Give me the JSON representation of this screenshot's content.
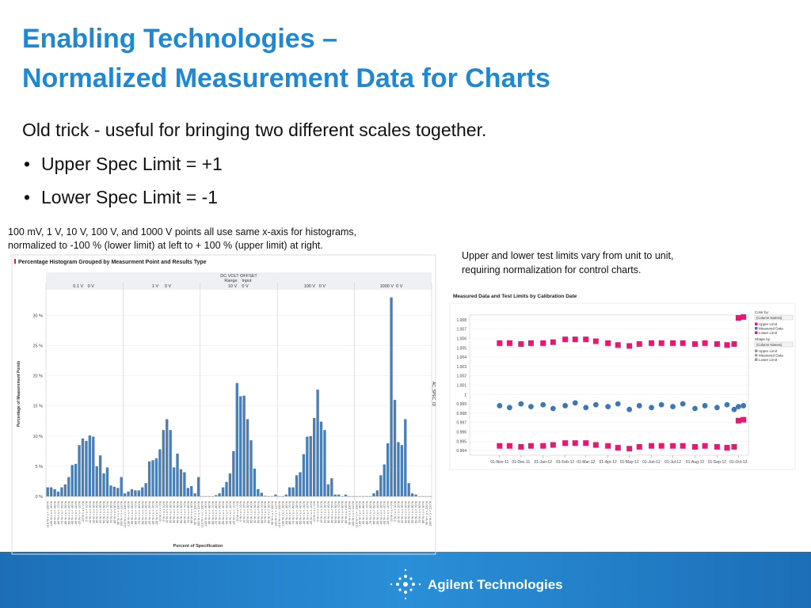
{
  "title": [
    "Enabling Technologies –",
    "Normalized Measurement Data for Charts"
  ],
  "intro": "Old trick  - useful for bringing two different scales together.",
  "bullets": [
    "Upper Spec Limit = +1",
    "Lower Spec Limit = -1"
  ],
  "caption_left": [
    "100 mV, 1 V, 10 V, 100 V, and 1000 V points all use same x-axis for histograms,",
    "normalized to -100 % (lower limit) at left to + 100 % (upper limit) at right."
  ],
  "caption_right": [
    "Upper and lower test limits vary from unit to unit,",
    "requiring normalization for control charts."
  ],
  "footer": "Agilent Technologies",
  "chart_data": [
    {
      "type": "bar",
      "title": "Percentage Histogram Grouped by Measurment Point and Results Type",
      "group_header": "DC VOLT OFFSET",
      "group_fields": [
        "Range",
        "Input"
      ],
      "ylabel": "Percentage of Measurement Points",
      "side_label": "AC_SPEC_ID",
      "xlabel": "Percent of Specification",
      "color": "#4a7fb5",
      "ylim": [
        0,
        34
      ],
      "yticks": [
        {
          "value": 0,
          "label": "0 %"
        },
        {
          "value": 5,
          "label": "5 %"
        },
        {
          "value": 10,
          "label": "10 %"
        },
        {
          "value": 15,
          "label": "15 %"
        },
        {
          "value": 20,
          "label": "20 %"
        },
        {
          "value": 25,
          "label": "25 %"
        },
        {
          "value": 30,
          "label": "30 %"
        }
      ],
      "grid": true,
      "categories": [
        "-110 % < x < -100 %",
        "-100 % < x < -90 %",
        "-90 % < x < -80 %",
        "-80 % < x < -70 %",
        "-70 % < x < -60 %",
        "-60 % < x < -50 %",
        "-50 % < x < -40 %",
        "-40 % < x < -30 %",
        "-30 % < x < -20 %",
        "-20 % < x < -10 %",
        "-10 % < x < 0 %",
        "0 % < x < 10 %",
        "10 % < x < 20 %",
        "20 % < x < 30 %",
        "30 % < x < 40 %",
        "40 % < x < 50 %",
        "50 % < x < 60 %",
        "60 % < x < 70 %",
        "70 % < x < 80 %",
        "80 % < x < 90 %",
        "90 % < x < 100 %",
        "100 % < x < 110 %"
      ],
      "series": [
        {
          "name": "0.1 V",
          "input": "0 V",
          "values": [
            1.5,
            1.5,
            1.2,
            0.8,
            1.5,
            2,
            3.2,
            5.2,
            5.4,
            8.5,
            9.6,
            9.2,
            10.1,
            9.9,
            5,
            6.8,
            3.8,
            4.8,
            1.8,
            1.6,
            1.4,
            3.2
          ]
        },
        {
          "name": "1 V",
          "input": "0 V",
          "values": [
            0.5,
            0.8,
            1.2,
            1,
            1,
            1.5,
            2.2,
            5.8,
            6,
            6.3,
            7.8,
            11,
            12.8,
            11,
            4.8,
            7.1,
            4.5,
            4,
            1.4,
            1.7,
            0.5,
            3.2
          ]
        },
        {
          "name": "10 V",
          "input": "0 V",
          "values": [
            0,
            0,
            0,
            0,
            0.2,
            0.5,
            1.5,
            2.4,
            3.8,
            7.5,
            18.8,
            16.6,
            16.7,
            12.8,
            9.3,
            4.6,
            1.2,
            0.6,
            0.1,
            0,
            0,
            0.3
          ]
        },
        {
          "name": "100 V",
          "input": "0 V",
          "values": [
            0,
            0,
            0.3,
            1.5,
            1.5,
            3.5,
            4,
            7,
            9.9,
            10,
            13,
            17.7,
            12.4,
            11,
            2,
            3,
            0.3,
            0.3,
            0,
            0.3,
            0,
            0
          ]
        },
        {
          "name": "1000 V",
          "input": "0 V",
          "values": [
            0,
            0,
            0,
            0,
            0,
            0.5,
            1,
            3.5,
            5.3,
            8.8,
            33,
            16,
            9,
            8.5,
            12.8,
            2.2,
            0.5,
            0.3,
            0,
            0,
            0,
            0
          ]
        }
      ]
    },
    {
      "type": "scatter",
      "title": "Measured Data and Test Limits by Calibration Date",
      "legend_labels": {
        "color_by": "Color by:",
        "shape_by": "Shape by:",
        "column": "(Column Names)"
      },
      "xlim": [
        "2011-09-20",
        "2012-10-15"
      ],
      "xticks": [
        {
          "value": "2011-11-01",
          "label": "01-Nov-11"
        },
        {
          "value": "2011-12-01",
          "label": "01-Dec-11"
        },
        {
          "value": "2012-01-01",
          "label": "01-Jan-12"
        },
        {
          "value": "2012-02-01",
          "label": "01-Feb-12"
        },
        {
          "value": "2012-03-01",
          "label": "01-Mar-12"
        },
        {
          "value": "2012-04-01",
          "label": "01-Apr-12"
        },
        {
          "value": "2012-05-01",
          "label": "01-May-12"
        },
        {
          "value": "2012-06-01",
          "label": "01-Jun-12"
        },
        {
          "value": "2012-07-01",
          "label": "01-Jul-12"
        },
        {
          "value": "2012-08-01",
          "label": "01-Aug-12"
        },
        {
          "value": "2012-09-01",
          "label": "01-Sep-12"
        },
        {
          "value": "2012-10-01",
          "label": "01-Oct-12"
        }
      ],
      "ylim": [
        0.9935,
        1.0085
      ],
      "yticks": [
        0.994,
        0.995,
        0.996,
        0.997,
        0.998,
        0.999,
        1,
        1.001,
        1.002,
        1.003,
        1.004,
        1.005,
        1.006,
        1.007,
        1.008
      ],
      "grid": true,
      "x": [
        "2011-11-01",
        "2011-11-15",
        "2011-12-01",
        "2011-12-15",
        "2012-01-01",
        "2012-01-15",
        "2012-02-01",
        "2012-02-15",
        "2012-03-01",
        "2012-03-15",
        "2012-04-01",
        "2012-04-15",
        "2012-05-01",
        "2012-05-15",
        "2012-06-01",
        "2012-06-15",
        "2012-07-01",
        "2012-07-15",
        "2012-08-01",
        "2012-08-15",
        "2012-09-01",
        "2012-09-15",
        "2012-09-25",
        "2012-10-01",
        "2012-10-08"
      ],
      "series": [
        {
          "name": "Upper Limit",
          "color": "#e8176f",
          "marker": "square",
          "values": [
            1.0055,
            1.0055,
            1.0054,
            1.0055,
            1.0055,
            1.0056,
            1.0059,
            1.0059,
            1.0059,
            1.0057,
            1.0055,
            1.0053,
            1.0052,
            1.0054,
            1.0055,
            1.0055,
            1.0055,
            1.0055,
            1.0054,
            1.0055,
            1.0054,
            1.0053,
            1.0054,
            1.0082,
            1.0083
          ]
        },
        {
          "name": "Measured Data",
          "color": "#3d78b6",
          "marker": "circle",
          "values": [
            0.9988,
            0.9986,
            0.999,
            0.9987,
            0.9989,
            0.9985,
            0.9988,
            0.9991,
            0.9986,
            0.9989,
            0.9987,
            0.999,
            0.9984,
            0.9988,
            0.9986,
            0.9989,
            0.9987,
            0.999,
            0.9985,
            0.9988,
            0.9986,
            0.9989,
            0.9984,
            0.9987,
            0.9988
          ]
        },
        {
          "name": "Lower Limit",
          "color": "#e8176f",
          "marker": "square",
          "values": [
            0.9945,
            0.9945,
            0.9944,
            0.9945,
            0.9945,
            0.9946,
            0.9948,
            0.9948,
            0.9948,
            0.9946,
            0.9945,
            0.9943,
            0.9942,
            0.9944,
            0.9945,
            0.9945,
            0.9945,
            0.9945,
            0.9944,
            0.9945,
            0.9944,
            0.9943,
            0.9944,
            0.9972,
            0.9973
          ]
        }
      ]
    }
  ]
}
